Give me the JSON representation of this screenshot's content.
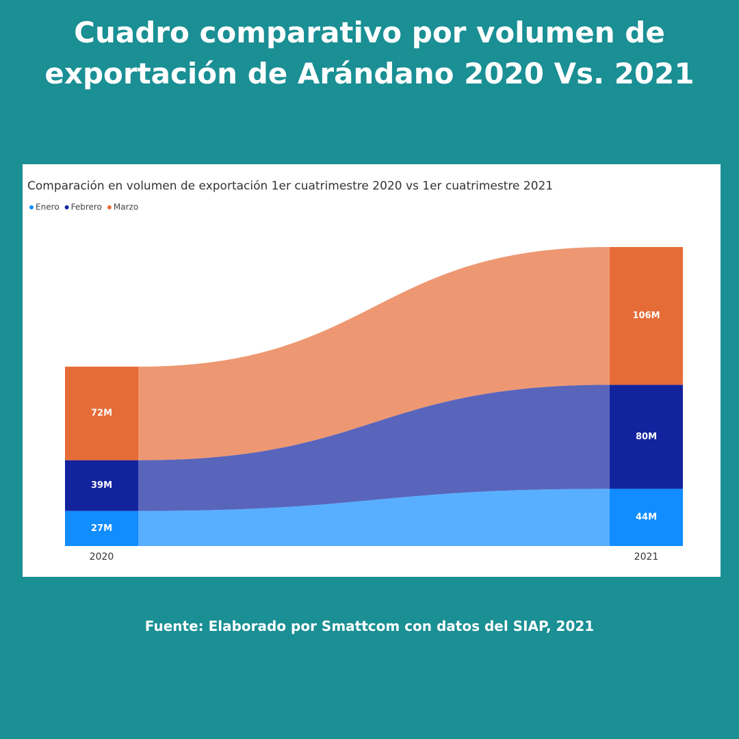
{
  "title": "Cuadro comparativo por volumen de exportación de Arándano 2020 Vs. 2021",
  "source": "Fuente: Elaborado por Smattcom con datos del SIAP, 2021",
  "chart_data": {
    "type": "ribbon",
    "title": "Comparación en volumen de exportación 1er cuatrimestre 2020 vs 1er cuatrimestre 2021",
    "categories": [
      "2020",
      "2021"
    ],
    "series": [
      {
        "name": "Enero",
        "color": "#118dff",
        "values": [
          27,
          44
        ],
        "value_labels": [
          "27M",
          "44M"
        ]
      },
      {
        "name": "Febrero",
        "color": "#12239e",
        "values": [
          39,
          80
        ],
        "value_labels": [
          "39M",
          "80M"
        ]
      },
      {
        "name": "Marzo",
        "color": "#e66c37",
        "values": [
          72,
          106
        ],
        "value_labels": [
          "72M",
          "106M"
        ]
      }
    ]
  }
}
